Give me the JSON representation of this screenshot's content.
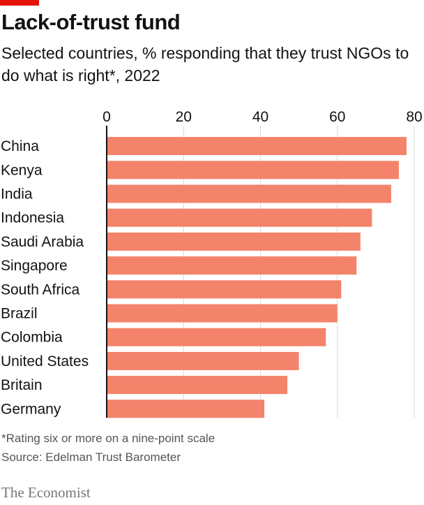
{
  "header": {
    "title": "Lack-of-trust fund",
    "subtitle": "Selected countries, % responding that they trust NGOs to do what is right*, 2022"
  },
  "chart_data": {
    "type": "bar",
    "orientation": "horizontal",
    "categories": [
      "China",
      "Kenya",
      "India",
      "Indonesia",
      "Saudi Arabia",
      "Singapore",
      "South Africa",
      "Brazil",
      "Colombia",
      "United States",
      "Britain",
      "Germany"
    ],
    "values": [
      78,
      76,
      74,
      69,
      66,
      65,
      61,
      60,
      57,
      50,
      47,
      41
    ],
    "xlim": [
      0,
      80
    ],
    "ticks": [
      "0",
      "20",
      "40",
      "60",
      "80"
    ],
    "grid": true,
    "bar_color": "#f4836b"
  },
  "footnote": {
    "note": "*Rating six or more on a nine-point scale",
    "source": "Source: Edelman Trust Barometer"
  },
  "brand": "The Economist",
  "colors": {
    "accent": "#e3120b",
    "bar": "#f4836b",
    "grid": "#d9d9d9"
  }
}
